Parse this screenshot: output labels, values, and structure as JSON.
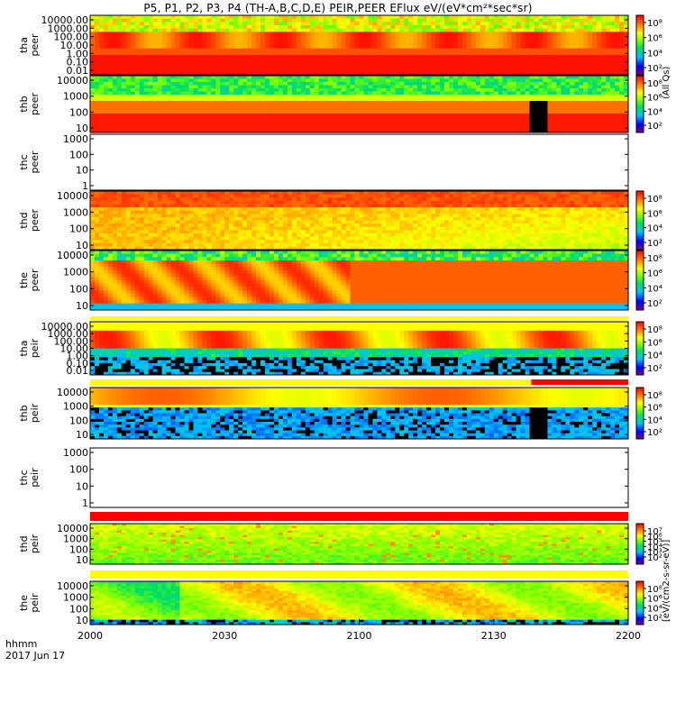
{
  "title": "P5, P1, P2, P3, P4 (TH-A,B,C,D,E) PEIR,PEER EFlux eV/(eV*cm²*sec*sr)",
  "footer": {
    "time_label": "hhmm",
    "date_label": "2017 Jun 17"
  },
  "colorbar_unit": "[eV/(cm2-s-sr-eV)]",
  "colorbar_unit_alt": "(All Qs)",
  "chart_data": {
    "type": "heatmap",
    "x_axis": {
      "range": [
        "20:00",
        "22:00"
      ],
      "ticks": [
        "2000",
        "2030",
        "2100",
        "2130",
        "2200"
      ]
    },
    "panels": [
      {
        "id": "tha-peer",
        "probe": "tha",
        "species": "peer",
        "has_data": true,
        "y_ticks": [
          "10000.00",
          "1000.00",
          "100.00",
          "10.00",
          "1.00",
          "0.10",
          "0.01"
        ],
        "cb_ticks": [
          "10⁸",
          "10⁶",
          "10⁴",
          "10²"
        ],
        "top_bar": null
      },
      {
        "id": "thb-peer",
        "probe": "thb",
        "species": "peer",
        "has_data": true,
        "y_ticks": [
          "10000",
          "1000",
          "100",
          "10"
        ],
        "cb_ticks": [
          "10⁸",
          "10⁶",
          "10⁴",
          "10²"
        ],
        "top_bar": null
      },
      {
        "id": "thc-peer",
        "probe": "thc",
        "species": "peer",
        "has_data": false,
        "y_ticks": [
          "1000",
          "100",
          "10",
          "1"
        ],
        "cb_ticks": [],
        "top_bar": null
      },
      {
        "id": "thd-peer",
        "probe": "thd",
        "species": "peer",
        "has_data": true,
        "y_ticks": [
          "10000",
          "1000",
          "100",
          "10"
        ],
        "cb_ticks": [
          "10⁸",
          "10⁶",
          "10⁴",
          "10²"
        ],
        "top_bar": null
      },
      {
        "id": "the-peer",
        "probe": "the",
        "species": "peer",
        "has_data": true,
        "y_ticks": [
          "10000",
          "1000",
          "100",
          "10"
        ],
        "cb_ticks": [
          "10⁸",
          "10⁶",
          "10⁴",
          "10²"
        ],
        "top_bar": null
      },
      {
        "id": "tha-peir",
        "probe": "tha",
        "species": "peir",
        "has_data": true,
        "y_ticks": [
          "10000.00",
          "1000.00",
          "100.00",
          "10.00",
          "1.00",
          "0.10",
          "0.01"
        ],
        "cb_ticks": [
          "10⁸",
          "10⁶",
          "10⁴",
          "10²"
        ],
        "top_bar": "yellow"
      },
      {
        "id": "thb-peir",
        "probe": "thb",
        "species": "peir",
        "has_data": true,
        "y_ticks": [
          "10000",
          "1000",
          "100",
          "10"
        ],
        "cb_ticks": [
          "10⁸",
          "10⁶",
          "10⁴",
          "10²"
        ],
        "top_bar": "yellow-red"
      },
      {
        "id": "thc-peir",
        "probe": "thc",
        "species": "peir",
        "has_data": false,
        "y_ticks": [
          "1000",
          "100",
          "10",
          "1"
        ],
        "cb_ticks": [],
        "top_bar": null
      },
      {
        "id": "thd-peir",
        "probe": "thd",
        "species": "peir",
        "has_data": true,
        "y_ticks": [
          "10000",
          "1000",
          "100",
          "10"
        ],
        "cb_ticks": [
          "10⁷",
          "10⁶",
          "10⁵",
          "10⁴",
          "10³",
          "10²"
        ],
        "top_bar": "red"
      },
      {
        "id": "the-peir",
        "probe": "the",
        "species": "peir",
        "has_data": true,
        "y_ticks": [
          "10000",
          "1000",
          "100",
          "10"
        ],
        "cb_ticks": [
          "10⁸",
          "10⁶",
          "10⁴",
          "10²"
        ],
        "top_bar": "yellow"
      }
    ],
    "colorscale": [
      "#800080",
      "#0000ff",
      "#00c0ff",
      "#00e060",
      "#80ff00",
      "#ffff00",
      "#ff8000",
      "#ff0000"
    ]
  }
}
